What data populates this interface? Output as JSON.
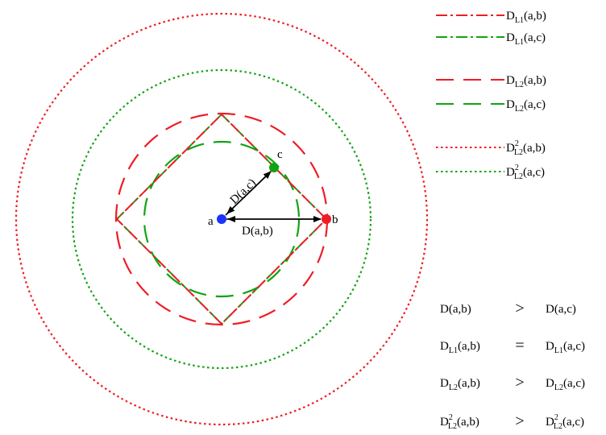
{
  "colors": {
    "red": "#ee1c24",
    "green": "#12a312",
    "point_a": "#1a33ff",
    "black": "#000000"
  },
  "points": {
    "a": {
      "label": "a"
    },
    "b": {
      "label": "b"
    },
    "c": {
      "label": "c"
    }
  },
  "vectors": {
    "ab": "D(a,b)",
    "ac": "D(a,c)"
  },
  "legend": [
    {
      "id": "l1-ab",
      "style": "dash-dot",
      "color": "red",
      "base": "D",
      "sub": "L1",
      "sup": "",
      "args": "(a,b)"
    },
    {
      "id": "l1-ac",
      "style": "dash-dot",
      "color": "green",
      "base": "D",
      "sub": "L1",
      "sup": "",
      "args": "(a,c)"
    },
    {
      "id": "l2-ab",
      "style": "long-dash",
      "color": "red",
      "base": "D",
      "sub": "L2",
      "sup": "",
      "args": "(a,b)"
    },
    {
      "id": "l2-ac",
      "style": "long-dash",
      "color": "green",
      "base": "D",
      "sub": "L2",
      "sup": "",
      "args": "(a,c)"
    },
    {
      "id": "l2sq-ab",
      "style": "dotted",
      "color": "red",
      "base": "D",
      "sub": "L2",
      "sup": "2",
      "args": "(a,b)"
    },
    {
      "id": "l2sq-ac",
      "style": "dotted",
      "color": "green",
      "base": "D",
      "sub": "L2",
      "sup": "2",
      "args": "(a,c)"
    }
  ],
  "relations": [
    {
      "left": {
        "base": "D",
        "sub": "",
        "sup": "",
        "args": "(a,b)"
      },
      "op": ">",
      "right": {
        "base": "D",
        "sub": "",
        "sup": "",
        "args": "(a,c)"
      }
    },
    {
      "left": {
        "base": "D",
        "sub": "L1",
        "sup": "",
        "args": "(a,b)"
      },
      "op": "=",
      "right": {
        "base": "D",
        "sub": "L1",
        "sup": "",
        "args": "(a,c)"
      }
    },
    {
      "left": {
        "base": "D",
        "sub": "L2",
        "sup": "",
        "args": "(a,b)"
      },
      "op": ">",
      "right": {
        "base": "D",
        "sub": "L2",
        "sup": "",
        "args": "(a,c)"
      }
    },
    {
      "left": {
        "base": "D",
        "sub": "L2",
        "sup": "2",
        "args": "(a,b)"
      },
      "op": ">",
      "right": {
        "base": "D",
        "sub": "L2",
        "sup": "2",
        "args": "(a,c)"
      }
    }
  ]
}
